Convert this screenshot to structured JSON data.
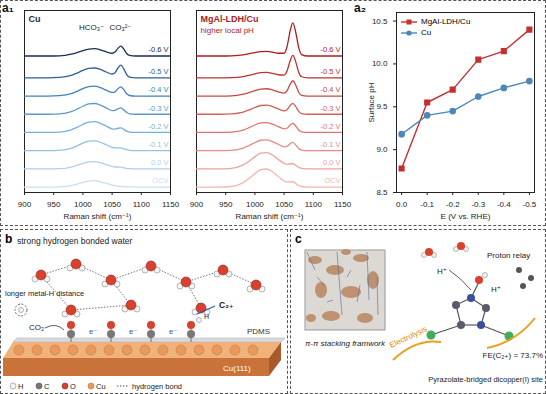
{
  "panel_labels": [
    "a₁",
    "a₂",
    "b",
    "c"
  ],
  "chart_data": [
    {
      "type": "line",
      "title": "Cu",
      "annotations": [
        "HCO₃⁻",
        "CO₃²⁻"
      ],
      "xlabel": "Raman shift (cm⁻¹)",
      "xlim": [
        900,
        1150
      ],
      "xticks": [
        900,
        950,
        1000,
        1050,
        1100,
        1150
      ],
      "ylim": [
        0,
        10
      ],
      "tick_labels": "x",
      "x": [
        900,
        920,
        940,
        960,
        980,
        990,
        1000,
        1010,
        1020,
        1030,
        1040,
        1050,
        1055,
        1060,
        1065,
        1070,
        1075,
        1080,
        1090,
        1100,
        1120,
        1150
      ],
      "series": [
        {
          "name": "OCV",
          "color": "#c9e0f0",
          "values": [
            0.3,
            0.3,
            0.3,
            0.31,
            0.38,
            0.46,
            0.56,
            0.63,
            0.65,
            0.59,
            0.5,
            0.41,
            0.38,
            0.35,
            0.33,
            0.32,
            0.31,
            0.31,
            0.3,
            0.3,
            0.3,
            0.3
          ]
        },
        {
          "name": "0.0 V",
          "color": "#b0d0ea",
          "values": [
            1.3,
            1.3,
            1.3,
            1.31,
            1.4,
            1.49,
            1.6,
            1.68,
            1.7,
            1.64,
            1.53,
            1.43,
            1.4,
            1.4,
            1.39,
            1.36,
            1.32,
            1.31,
            1.3,
            1.3,
            1.3,
            1.3
          ]
        },
        {
          "name": "-0.1 V",
          "color": "#96c0e2",
          "values": [
            2.3,
            2.3,
            2.3,
            2.32,
            2.43,
            2.56,
            2.71,
            2.82,
            2.84,
            2.76,
            2.62,
            2.48,
            2.45,
            2.45,
            2.45,
            2.4,
            2.35,
            2.31,
            2.3,
            2.3,
            2.3,
            2.3
          ]
        },
        {
          "name": "-0.2 V",
          "color": "#7aaed8",
          "values": [
            3.3,
            3.3,
            3.3,
            3.32,
            3.44,
            3.58,
            3.74,
            3.87,
            3.89,
            3.8,
            3.65,
            3.5,
            3.48,
            3.53,
            3.55,
            3.47,
            3.37,
            3.32,
            3.3,
            3.3,
            3.3,
            3.3
          ]
        },
        {
          "name": "-0.3 V",
          "color": "#5d97c8",
          "values": [
            4.3,
            4.3,
            4.3,
            4.32,
            4.44,
            4.58,
            4.74,
            4.87,
            4.89,
            4.8,
            4.65,
            4.5,
            4.51,
            4.6,
            4.65,
            4.54,
            4.4,
            4.32,
            4.3,
            4.3,
            4.3,
            4.3
          ]
        },
        {
          "name": "-0.4 V",
          "color": "#4580b6",
          "values": [
            5.3,
            5.3,
            5.3,
            5.32,
            5.43,
            5.56,
            5.71,
            5.82,
            5.84,
            5.76,
            5.62,
            5.5,
            5.53,
            5.7,
            5.8,
            5.65,
            5.43,
            5.33,
            5.3,
            5.3,
            5.3,
            5.3
          ]
        },
        {
          "name": "-0.5 V",
          "color": "#2f5f95",
          "values": [
            6.3,
            6.3,
            6.3,
            6.32,
            6.43,
            6.56,
            6.71,
            6.82,
            6.84,
            6.76,
            6.62,
            6.51,
            6.58,
            6.84,
            7.0,
            6.79,
            6.48,
            6.34,
            6.3,
            6.3,
            6.3,
            6.3
          ]
        },
        {
          "name": "-0.6 V",
          "color": "#1a2f52",
          "values": [
            7.5,
            7.5,
            7.5,
            7.51,
            7.6,
            7.69,
            7.8,
            7.88,
            7.9,
            7.84,
            7.73,
            7.65,
            7.72,
            7.92,
            8.04,
            7.88,
            7.64,
            7.53,
            7.5,
            7.5,
            7.5,
            7.5
          ]
        }
      ]
    },
    {
      "type": "line",
      "title": "MgAl-LDH/Cu",
      "annotations": [
        "higher local pH"
      ],
      "xlabel": "Raman shift (cm⁻¹)",
      "xlim": [
        900,
        1150
      ],
      "xticks": [
        900,
        950,
        1000,
        1050,
        1100,
        1150
      ],
      "ylim": [
        0,
        10
      ],
      "tick_labels": "x",
      "x": [
        900,
        920,
        940,
        960,
        980,
        990,
        1000,
        1010,
        1020,
        1030,
        1040,
        1050,
        1055,
        1060,
        1065,
        1070,
        1075,
        1080,
        1090,
        1100,
        1120,
        1150
      ],
      "series": [
        {
          "name": "OCV",
          "color": "#f3b7b0",
          "values": [
            0.3,
            0.3,
            0.3,
            0.33,
            0.54,
            0.77,
            1.04,
            1.25,
            1.29,
            1.14,
            0.88,
            0.63,
            0.57,
            0.59,
            0.59,
            0.49,
            0.38,
            0.33,
            0.3,
            0.3,
            0.3,
            0.3
          ]
        },
        {
          "name": "0.0 V",
          "color": "#eea39b",
          "values": [
            1.3,
            1.3,
            1.3,
            1.33,
            1.52,
            1.72,
            1.97,
            2.16,
            2.19,
            2.06,
            1.82,
            1.6,
            1.55,
            1.58,
            1.58,
            1.49,
            1.38,
            1.33,
            1.3,
            1.3,
            1.3,
            1.3
          ]
        },
        {
          "name": "-0.1 V",
          "color": "#e88c84",
          "values": [
            2.3,
            2.3,
            2.3,
            2.32,
            2.44,
            2.58,
            2.74,
            2.87,
            2.89,
            2.8,
            2.65,
            2.51,
            2.53,
            2.67,
            2.75,
            2.61,
            2.42,
            2.33,
            2.3,
            2.3,
            2.3,
            2.3
          ]
        },
        {
          "name": "-0.2 V",
          "color": "#e0766e",
          "values": [
            3.3,
            3.3,
            3.3,
            3.32,
            3.43,
            3.56,
            3.71,
            3.82,
            3.84,
            3.76,
            3.62,
            3.5,
            3.53,
            3.7,
            3.8,
            3.65,
            3.43,
            3.33,
            3.3,
            3.3,
            3.3,
            3.3
          ]
        },
        {
          "name": "-0.3 V",
          "color": "#d65f58",
          "values": [
            4.3,
            4.3,
            4.3,
            4.32,
            4.42,
            4.54,
            4.67,
            4.78,
            4.8,
            4.72,
            4.59,
            4.48,
            4.55,
            4.77,
            4.9,
            4.72,
            4.46,
            4.33,
            4.3,
            4.3,
            4.3,
            4.3
          ]
        },
        {
          "name": "-0.4 V",
          "color": "#c94843",
          "values": [
            5.3,
            5.3,
            5.3,
            5.31,
            5.4,
            5.49,
            5.6,
            5.68,
            5.7,
            5.64,
            5.53,
            5.46,
            5.59,
            5.93,
            6.14,
            5.89,
            5.51,
            5.34,
            5.3,
            5.3,
            5.3,
            5.3
          ]
        },
        {
          "name": "-0.5 V",
          "color": "#bb3330",
          "values": [
            6.3,
            6.3,
            6.3,
            6.31,
            6.37,
            6.44,
            6.52,
            6.59,
            6.6,
            6.55,
            6.47,
            6.45,
            6.67,
            7.2,
            7.53,
            7.17,
            6.61,
            6.36,
            6.3,
            6.3,
            6.3,
            6.3
          ]
        },
        {
          "name": "-0.6 V",
          "color": "#a91e1f",
          "values": [
            7.5,
            7.5,
            7.5,
            7.51,
            7.56,
            7.62,
            7.69,
            7.74,
            7.75,
            7.71,
            7.65,
            7.65,
            8.01,
            8.82,
            9.32,
            8.79,
            7.96,
            7.58,
            7.5,
            7.5,
            7.5,
            7.5
          ]
        }
      ]
    },
    {
      "type": "line",
      "xlabel": "E (V vs. RHE)",
      "ylabel": "Surface pH",
      "x": [
        0,
        -0.1,
        -0.2,
        -0.3,
        -0.4,
        -0.5
      ],
      "xlim": [
        0.02,
        -0.52
      ],
      "xticks": [
        {
          "value": 0,
          "label": "0.0"
        },
        -0.1,
        -0.2,
        -0.3,
        -0.4,
        -0.5
      ],
      "ylim": [
        8.5,
        10.6
      ],
      "yticks": [
        8.5,
        {
          "value": 9,
          "label": "9.0"
        },
        9.5,
        {
          "value": 10,
          "label": "10.0"
        },
        10.5
      ],
      "legend": "top-left",
      "series": [
        {
          "name": "MgAl-LDH/Cu",
          "color": "#c62f2f",
          "marker": "square",
          "values": [
            8.78,
            9.55,
            9.7,
            10.05,
            10.15,
            10.4
          ]
        },
        {
          "name": "Cu",
          "color": "#4d86b9",
          "marker": "circle",
          "values": [
            9.18,
            9.4,
            9.45,
            9.62,
            9.72,
            9.8
          ]
        }
      ]
    }
  ],
  "diagrams": {
    "b": {
      "heading": "strong hydrogen bonded water",
      "note": "longer metal-H distance",
      "reactant": "CO₂",
      "electron": "e⁻",
      "product": "C₂₊",
      "adsorbate_H": "H",
      "layer": "PDMS",
      "surface": "Cu(111)",
      "legend": [
        "H",
        "C",
        "O",
        "Cu",
        "hydrogen bond"
      ]
    },
    "c": {
      "caption_left": "π-π stacking framwork",
      "relay": "Proton relay",
      "proton": "H⁺",
      "process": "Electrolysis",
      "result": "FE(C₂₊) = 73.7%",
      "caption_right": "Pyrazolate-bridged dicopper(I) site"
    }
  }
}
